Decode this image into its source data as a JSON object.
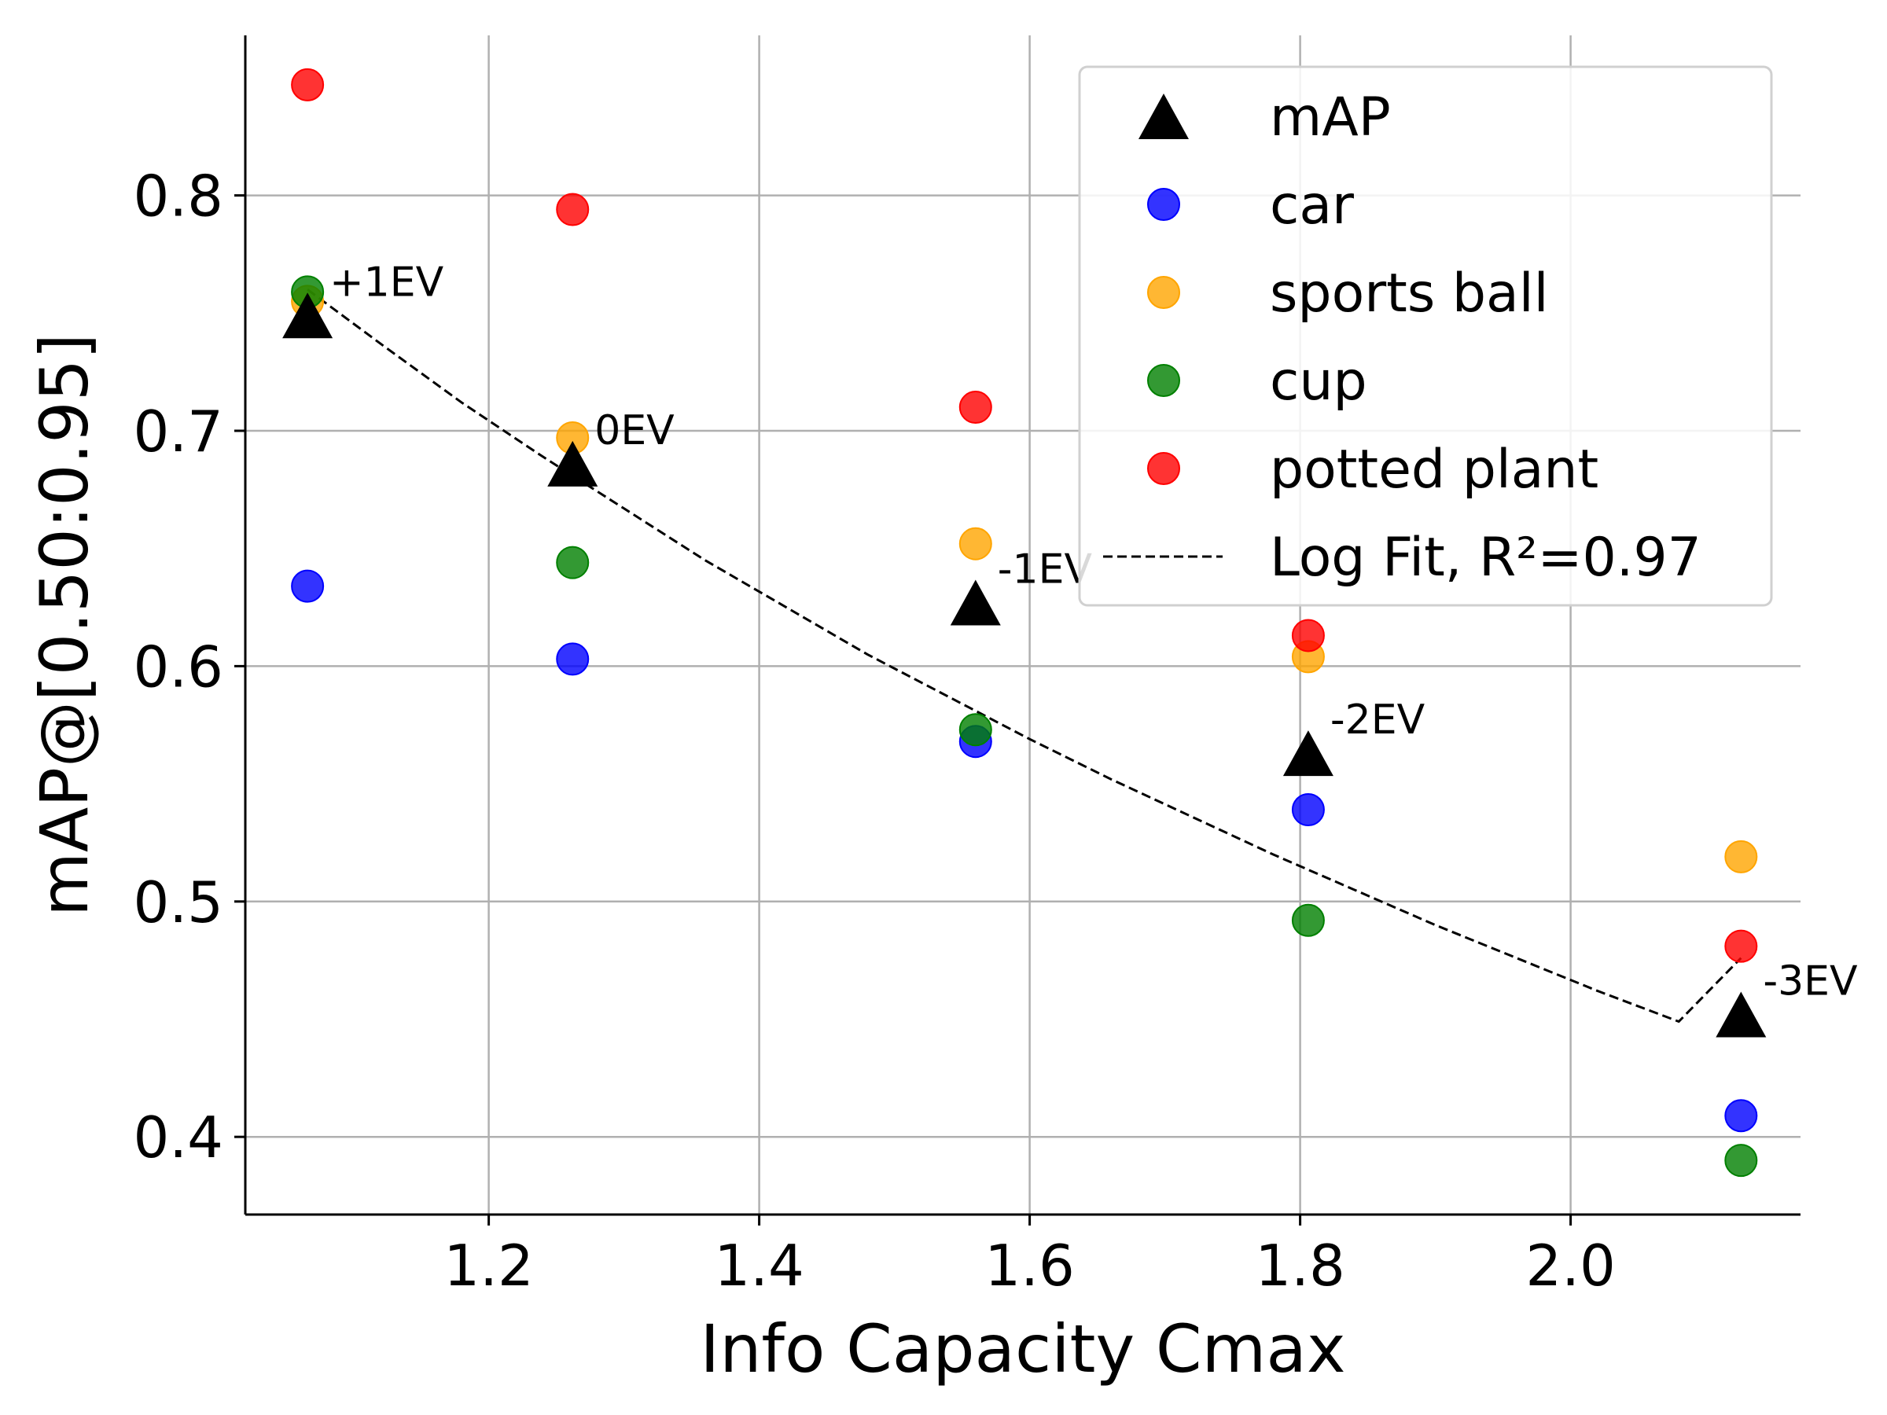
{
  "chart_data": {
    "type": "scatter",
    "title": "",
    "xlabel": "Info Capacity Cmax",
    "ylabel": "mAP@[0.50:0.95]",
    "xlim": [
      1.02,
      2.17
    ],
    "ylim": [
      0.367,
      0.868
    ],
    "xticks": [
      1.2,
      1.4,
      1.6,
      1.8,
      2.0
    ],
    "xtick_labels": [
      "1.2",
      "1.4",
      "1.6",
      "1.8",
      "2.0"
    ],
    "yticks": [
      0.4,
      0.5,
      0.6,
      0.7,
      0.8
    ],
    "ytick_labels": [
      "0.4",
      "0.5",
      "0.6",
      "0.7",
      "0.8"
    ],
    "grid": true,
    "legend_position": "top-right",
    "x": [
      1.066,
      1.262,
      1.56,
      1.806,
      2.126
    ],
    "series": [
      {
        "name": "mAP",
        "marker": "triangle",
        "color": "#000000",
        "values": [
          0.749,
          0.686,
          0.627,
          0.563,
          0.452
        ]
      },
      {
        "name": "car",
        "marker": "circle",
        "color": "#0000ff",
        "values": [
          0.634,
          0.603,
          0.568,
          0.539,
          0.409
        ]
      },
      {
        "name": "sports ball",
        "marker": "circle",
        "color": "#ffa500",
        "values": [
          0.755,
          0.697,
          0.652,
          0.604,
          0.519
        ]
      },
      {
        "name": "cup",
        "marker": "circle",
        "color": "#008000",
        "values": [
          0.759,
          0.644,
          0.573,
          0.492,
          0.39
        ]
      },
      {
        "name": "potted plant",
        "marker": "circle",
        "color": "#ff0000",
        "values": [
          0.847,
          0.794,
          0.71,
          0.613,
          0.481
        ]
      }
    ],
    "fit": {
      "name": "Log Fit, R²=0.97",
      "style": "dashed",
      "color": "#000000",
      "x": [
        1.066,
        1.12,
        1.18,
        1.24,
        1.3,
        1.36,
        1.42,
        1.48,
        1.54,
        1.6,
        1.66,
        1.72,
        1.78,
        1.84,
        1.9,
        1.96,
        2.02,
        2.08,
        2.126
      ],
      "y": [
        0.76,
        0.737,
        0.712,
        0.689,
        0.667,
        0.645,
        0.625,
        0.605,
        0.587,
        0.569,
        0.552,
        0.536,
        0.52,
        0.505,
        0.49,
        0.476,
        0.462,
        0.449,
        0.476
      ]
    },
    "annotations": [
      {
        "text": "+1EV",
        "x": 1.066,
        "y": 0.749
      },
      {
        "text": "0EV",
        "x": 1.262,
        "y": 0.686
      },
      {
        "text": "-1EV",
        "x": 1.56,
        "y": 0.627
      },
      {
        "text": "-2EV",
        "x": 1.806,
        "y": 0.563
      },
      {
        "text": "-3EV",
        "x": 2.126,
        "y": 0.452
      }
    ]
  }
}
